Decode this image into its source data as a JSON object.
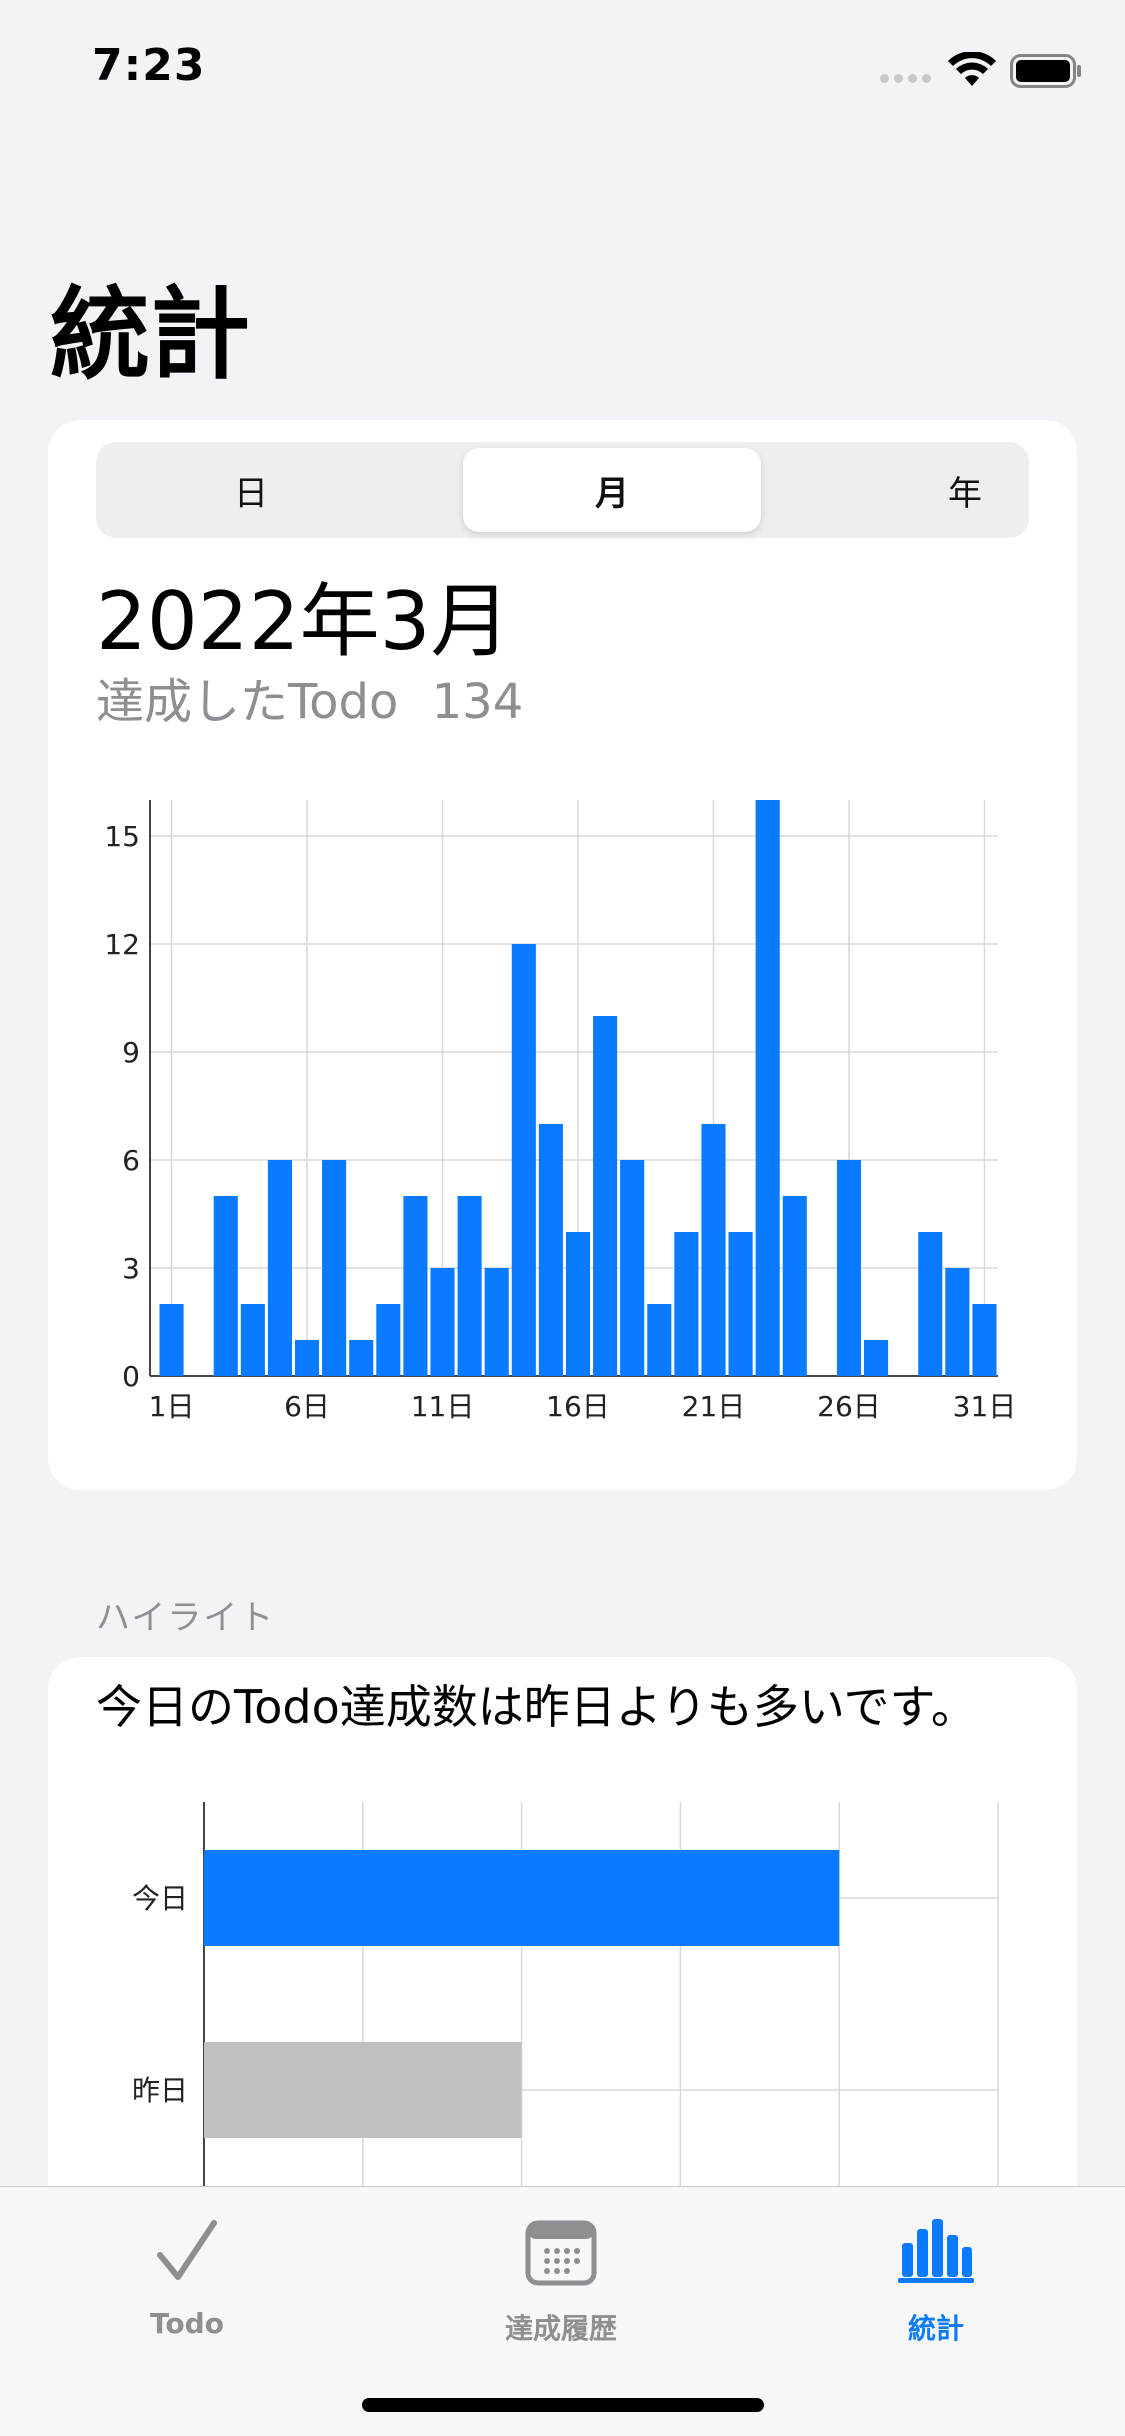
{
  "status_bar": {
    "time": "7:23"
  },
  "page_title": "統計",
  "period_segments": [
    {
      "label": "日",
      "selected": false
    },
    {
      "label": "月",
      "selected": true
    },
    {
      "label": "年",
      "selected": false
    }
  ],
  "stats": {
    "month_label": "2022年3月",
    "achieved_label": "達成したTodo",
    "achieved_count": "134"
  },
  "highlight": {
    "section_title": "ハイライト",
    "message": "今日のTodo達成数は昨日よりも多いです。"
  },
  "tabs": [
    {
      "label": "Todo",
      "icon": "checkmark-icon",
      "active": false
    },
    {
      "label": "達成履歴",
      "icon": "calendar-icon",
      "active": false
    },
    {
      "label": "統計",
      "icon": "chart-bar-icon",
      "active": true
    }
  ],
  "colors": {
    "accent": "#0a7aff",
    "yesterday_bar": "#c0c0c0",
    "background": "#f2f2f7"
  },
  "chart_data": [
    {
      "type": "bar",
      "x_tick_labels": [
        "1日",
        "6日",
        "11日",
        "16日",
        "21日",
        "26日",
        "31日"
      ],
      "y_tick_labels": [
        "0",
        "3",
        "6",
        "9",
        "12",
        "15"
      ],
      "categories": [
        "1日",
        "2日",
        "3日",
        "4日",
        "5日",
        "6日",
        "7日",
        "8日",
        "9日",
        "10日",
        "11日",
        "12日",
        "13日",
        "14日",
        "15日",
        "16日",
        "17日",
        "18日",
        "19日",
        "20日",
        "21日",
        "22日",
        "23日",
        "24日",
        "25日",
        "26日",
        "27日",
        "28日",
        "29日",
        "30日",
        "31日"
      ],
      "values": [
        2,
        0,
        5,
        2,
        6,
        1,
        6,
        1,
        2,
        5,
        3,
        5,
        3,
        12,
        7,
        4,
        10,
        6,
        2,
        4,
        7,
        4,
        16,
        5,
        0,
        6,
        1,
        0,
        4,
        3,
        2
      ],
      "ylim": [
        0,
        16
      ],
      "grid": true
    },
    {
      "type": "bar",
      "orientation": "horizontal",
      "categories": [
        "今日",
        "昨日"
      ],
      "values": [
        4,
        2
      ],
      "xlim": [
        0,
        5
      ],
      "grid": true
    }
  ]
}
